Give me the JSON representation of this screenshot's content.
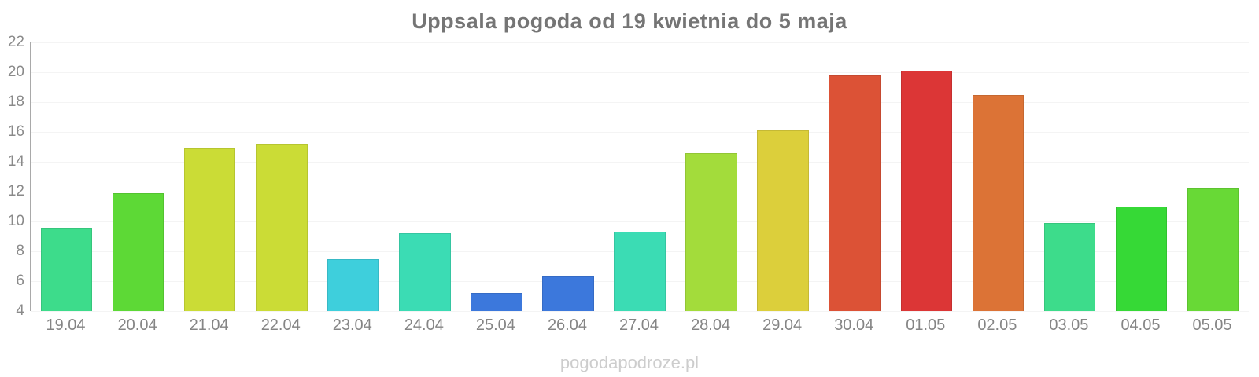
{
  "watermark": "pogodapodroze.pl",
  "colors": {
    "background": "#ffffff",
    "title_text": "#757575",
    "tick_text": "#8a8a8a",
    "gridline": "#f4f4f4",
    "axis_line": "#a9a9a9",
    "watermark_text": "#cdcdcd"
  },
  "chart_data": {
    "type": "bar",
    "title": "Uppsala pogoda od 19 kwietnia do 5 maja",
    "xlabel": "",
    "ylabel": "",
    "categories": [
      "19.04",
      "20.04",
      "21.04",
      "22.04",
      "23.04",
      "24.04",
      "25.04",
      "26.04",
      "27.04",
      "28.04",
      "29.04",
      "30.04",
      "01.05",
      "02.05",
      "03.05",
      "04.05",
      "05.05"
    ],
    "values": [
      9.6,
      11.9,
      14.9,
      15.2,
      7.5,
      9.2,
      5.2,
      6.3,
      9.3,
      14.6,
      16.1,
      19.8,
      20.1,
      18.5,
      9.9,
      11.0,
      12.2
    ],
    "bar_colors": [
      "#3ddc8b",
      "#5dd936",
      "#cbdc36",
      "#cbdc36",
      "#3ecfdc",
      "#3bdcb4",
      "#3c78dc",
      "#3c78dc",
      "#3bdcb4",
      "#a3dc3b",
      "#dccf3b",
      "#dc5236",
      "#dc3636",
      "#dc7336",
      "#3ddc8b",
      "#36d936",
      "#68d936"
    ],
    "ylim": [
      4,
      22
    ],
    "yticks": [
      4,
      6,
      8,
      10,
      12,
      14,
      16,
      18,
      20,
      22
    ],
    "grid": true,
    "legend": "none"
  }
}
